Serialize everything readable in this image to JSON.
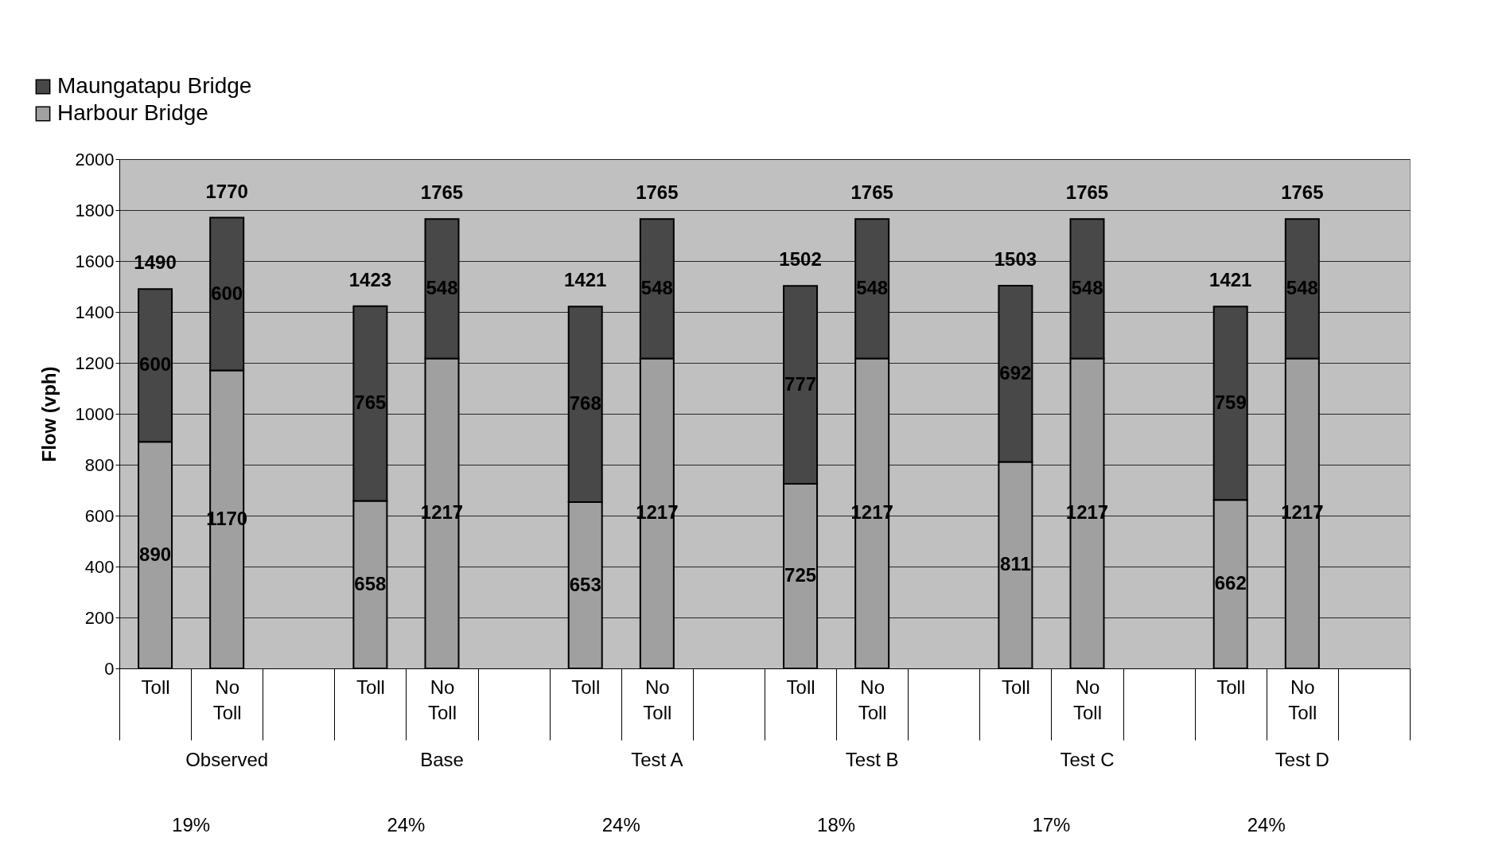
{
  "chart_data": {
    "type": "bar",
    "stacked": true,
    "ylabel": "Flow (vph)",
    "categories": [
      "Toll",
      "No Toll",
      null,
      "Toll",
      "No Toll",
      null,
      "Toll",
      "No Toll",
      null,
      "Toll",
      "No Toll",
      null,
      "Toll",
      "No Toll",
      null,
      "Toll",
      "No Toll",
      null
    ],
    "series": [
      {
        "name": "Harbour Bridge",
        "color": "#a0a0a0",
        "values": [
          890,
          1170,
          null,
          658,
          1217,
          null,
          653,
          1217,
          null,
          725,
          1217,
          null,
          811,
          1217,
          null,
          662,
          1217,
          null
        ]
      },
      {
        "name": "Maungatapu Bridge",
        "color": "#484848",
        "values": [
          600,
          600,
          null,
          765,
          548,
          null,
          768,
          548,
          null,
          777,
          548,
          null,
          692,
          548,
          null,
          759,
          548,
          null
        ]
      }
    ],
    "totals": [
      "1490",
      "1770",
      null,
      "1423",
      "1765",
      null,
      "1421",
      "1765",
      null,
      "1502",
      "1765",
      null,
      "1503",
      "1765",
      null,
      "1421",
      "1765",
      null
    ],
    "data_labels": true,
    "ylim": [
      0,
      2000
    ],
    "yticks": [
      0,
      200,
      400,
      600,
      800,
      1000,
      1200,
      1400,
      1600,
      1800,
      2000
    ],
    "grid": "y",
    "legend": "top left",
    "annotations": [
      "Observed",
      "Base",
      "Test A",
      "Test B",
      "Test C",
      "Test D",
      "19%",
      "24%",
      "24%",
      "18%",
      "17%",
      "24%"
    ]
  }
}
